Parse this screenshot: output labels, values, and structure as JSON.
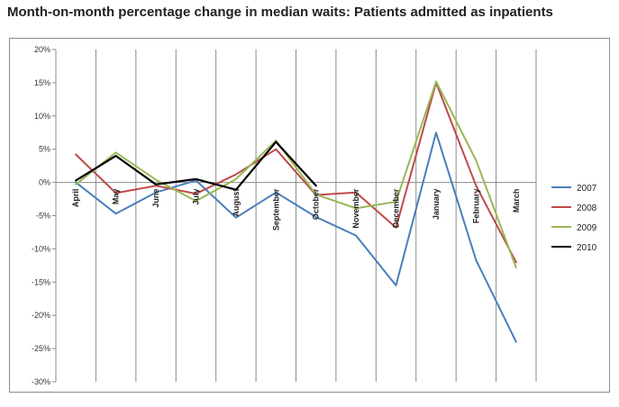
{
  "chart_data": {
    "type": "line",
    "title": "Month-on-month percentage change in median waits: Patients admitted as inpatients",
    "xlabel": "",
    "ylabel": "",
    "categories": [
      "April",
      "May",
      "June",
      "July",
      "August",
      "September",
      "October",
      "November",
      "December",
      "January",
      "February",
      "March"
    ],
    "yticks": [
      "20%",
      "15%",
      "10%",
      "5%",
      "0%",
      "-5%",
      "-10%",
      "-15%",
      "-20%",
      "-25%",
      "-30%"
    ],
    "ylim": [
      -30,
      20
    ],
    "grid": "vertical",
    "legend_position": "right",
    "series": [
      {
        "name": "2007",
        "color": "#4a7ebb",
        "values": [
          0,
          -4.7,
          -1.5,
          0.3,
          -5.3,
          -1.5,
          -5.2,
          -8,
          -15.5,
          7.5,
          -11.7,
          -24
        ]
      },
      {
        "name": "2008",
        "color": "#be4b48",
        "values": [
          4.2,
          -1.6,
          -0.5,
          -1.7,
          1.2,
          5,
          -1.9,
          -1.5,
          -6.8,
          15,
          -0.5,
          -12
        ]
      },
      {
        "name": "2009",
        "color": "#98b954",
        "values": [
          -0.3,
          4.5,
          0.4,
          -2.8,
          0.5,
          6.3,
          -1.8,
          -3.9,
          -2.9,
          15.2,
          3.3,
          -12.8
        ]
      },
      {
        "name": "2010",
        "color": "#000000",
        "values": [
          0.3,
          4,
          -0.3,
          0.5,
          -1.1,
          6.1,
          -0.5,
          null,
          null,
          null,
          null,
          null
        ]
      }
    ]
  }
}
